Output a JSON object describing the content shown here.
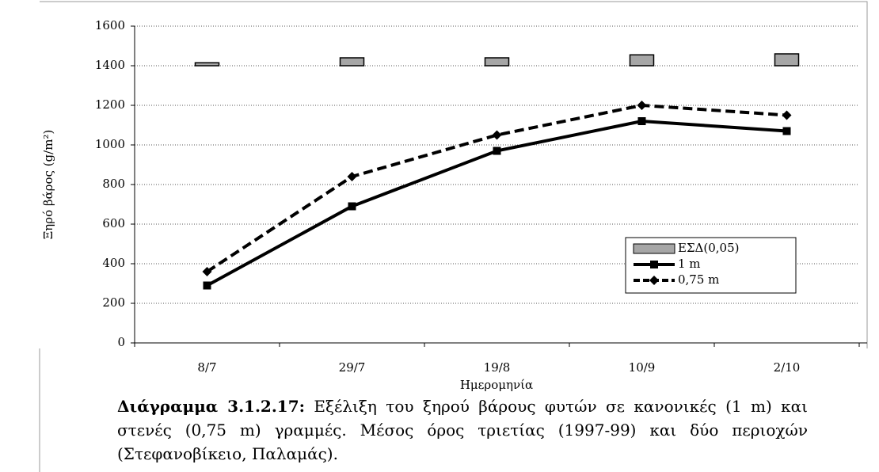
{
  "chart_data": {
    "type": "line",
    "categories": [
      "8/7",
      "29/7",
      "19/8",
      "10/9",
      "2/10"
    ],
    "series": [
      {
        "name": "ΕΣΔ(0,05)",
        "type": "bar",
        "base": 1400,
        "color": "#a6a6a6",
        "values": [
          15,
          40,
          40,
          55,
          60
        ]
      },
      {
        "name": "1 m",
        "type": "line",
        "marker": "square",
        "linestyle": "solid",
        "color": "#000000",
        "values": [
          290,
          690,
          970,
          1120,
          1070
        ]
      },
      {
        "name": "0,75 m",
        "type": "line",
        "marker": "diamond",
        "linestyle": "dashed",
        "color": "#000000",
        "values": [
          360,
          840,
          1050,
          1200,
          1150
        ]
      }
    ],
    "ylabel": "Ξηρό βάρος (g/m²)",
    "xlabel": "Ημερομηνία",
    "ylim": [
      0,
      1600
    ],
    "yticks": [
      0,
      200,
      400,
      600,
      800,
      1000,
      1200,
      1400,
      1600
    ],
    "grid": true
  },
  "caption": {
    "label": "Διάγραμμα 3.1.2.17:",
    "text": "Εξέλιξη του ξηρού βάρους φυτών σε κανονικές (1 m) και στενές (0,75 m) γραμμές. Μέσος όρος τριετίας (1997-99) και δύο περιοχών (Στεφανοβίκειο, Παλαμάς)."
  }
}
